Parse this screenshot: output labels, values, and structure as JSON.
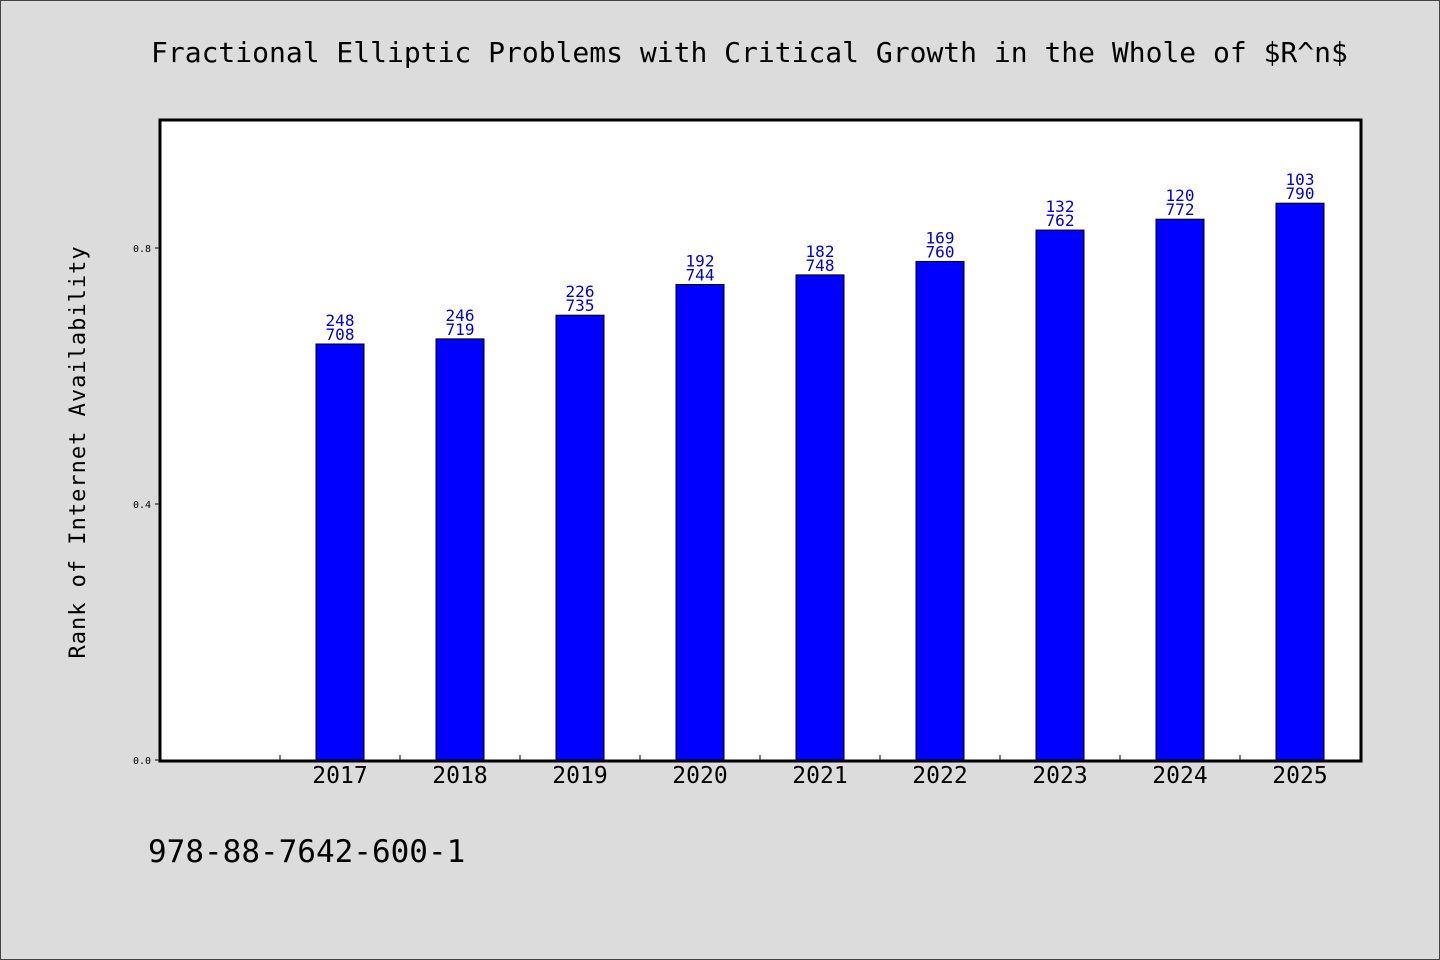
{
  "chart_data": {
    "type": "bar",
    "title": "Fractional Elliptic Problems with Critical Growth in the Whole of $R^n$",
    "xlabel": "",
    "ylabel": "Rank of Internet Availability",
    "categories": [
      "2017",
      "2018",
      "2019",
      "2020",
      "2021",
      "2022",
      "2023",
      "2024",
      "2025"
    ],
    "values": [
      0.65,
      0.658,
      0.695,
      0.743,
      0.758,
      0.779,
      0.828,
      0.845,
      0.87
    ],
    "bar_labels": [
      [
        "248",
        "708"
      ],
      [
        "246",
        "719"
      ],
      [
        "226",
        "735"
      ],
      [
        "192",
        "744"
      ],
      [
        "182",
        "748"
      ],
      [
        "169",
        "760"
      ],
      [
        "132",
        "762"
      ],
      [
        "120",
        "772"
      ],
      [
        "103",
        "790"
      ]
    ],
    "yticks": [
      "0.0",
      "0.4",
      "0.8"
    ],
    "ylim": [
      0,
      1.0
    ],
    "grid": false,
    "bar_color": "#0000ff",
    "label_color": "#0000cc"
  },
  "footer": {
    "isbn": "978-88-7642-600-1"
  }
}
